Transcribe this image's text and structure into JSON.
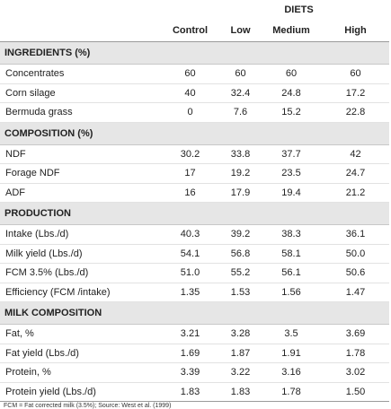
{
  "table": {
    "group_header": "DIETS",
    "columns": [
      "Control",
      "Low",
      "Medium",
      "High"
    ],
    "sections": [
      {
        "title": "INGREDIENTS (%)",
        "rows": [
          {
            "label": "Concentrates",
            "values": [
              "60",
              "60",
              "60",
              "60"
            ]
          },
          {
            "label": "Corn silage",
            "values": [
              "40",
              "32.4",
              "24.8",
              "17.2"
            ]
          },
          {
            "label": "Bermuda grass",
            "values": [
              "0",
              "7.6",
              "15.2",
              "22.8"
            ]
          }
        ]
      },
      {
        "title": "COMPOSITION (%)",
        "rows": [
          {
            "label": "NDF",
            "values": [
              "30.2",
              "33.8",
              "37.7",
              "42"
            ]
          },
          {
            "label": "Forage NDF",
            "values": [
              "17",
              "19.2",
              "23.5",
              "24.7"
            ]
          },
          {
            "label": "ADF",
            "values": [
              "16",
              "17.9",
              "19.4",
              "21.2"
            ]
          }
        ]
      },
      {
        "title": "PRODUCTION",
        "rows": [
          {
            "label": "Intake (Lbs./d)",
            "values": [
              "40.3",
              "39.2",
              "38.3",
              "36.1"
            ]
          },
          {
            "label": "Milk yield (Lbs./d)",
            "values": [
              "54.1",
              "56.8",
              "58.1",
              "50.0"
            ]
          },
          {
            "label": "FCM 3.5% (Lbs./d)",
            "values": [
              "51.0",
              "55.2",
              "56.1",
              "50.6"
            ]
          },
          {
            "label": "Efficiency (FCM /intake)",
            "values": [
              "1.35",
              "1.53",
              "1.56",
              "1.47"
            ]
          }
        ]
      },
      {
        "title": "MILK COMPOSITION",
        "rows": [
          {
            "label": "Fat, %",
            "values": [
              "3.21",
              "3.28",
              "3.5",
              "3.69"
            ]
          },
          {
            "label": "Fat yield (Lbs./d)",
            "values": [
              "1.69",
              "1.87",
              "1.91",
              "1.78"
            ]
          },
          {
            "label": "Protein, %",
            "values": [
              "3.39",
              "3.22",
              "3.16",
              "3.02"
            ]
          },
          {
            "label": "Protein yield (Lbs./d)",
            "values": [
              "1.83",
              "1.83",
              "1.78",
              "1.50"
            ]
          }
        ]
      }
    ],
    "footnote": "FCM = Fat corrected milk (3.5%); Source: West et al. (1999)"
  }
}
